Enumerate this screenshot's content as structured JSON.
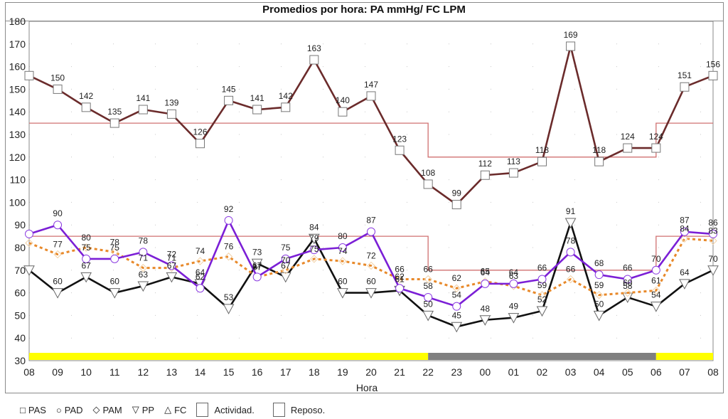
{
  "chart_data": {
    "type": "line",
    "title": "Promedios por hora: PA mmHg/ FC LPM",
    "xlabel": "Hora",
    "ylabel": "",
    "ylim": [
      30,
      180
    ],
    "yticks": [
      30,
      40,
      50,
      60,
      70,
      80,
      90,
      100,
      110,
      120,
      130,
      140,
      150,
      160,
      170,
      180
    ],
    "grid": "dotted",
    "categories": [
      "08",
      "09",
      "10",
      "11",
      "12",
      "13",
      "14",
      "15",
      "16",
      "17",
      "18",
      "19",
      "20",
      "21",
      "22",
      "23",
      "00",
      "01",
      "02",
      "03",
      "04",
      "05",
      "06",
      "07",
      "08"
    ],
    "series": [
      {
        "name": "PAS",
        "color": "#6b2b2b",
        "marker": "square",
        "values": [
          156,
          150,
          142,
          135,
          141,
          139,
          126,
          145,
          141,
          142,
          163,
          140,
          147,
          123,
          108,
          99,
          112,
          113,
          118,
          169,
          118,
          124,
          124,
          151,
          156
        ]
      },
      {
        "name": "PAD",
        "color": "#7b1fd6",
        "marker": "circle",
        "values": [
          86,
          90,
          75,
          75,
          78,
          72,
          62,
          92,
          67,
          75,
          79,
          80,
          87,
          62,
          58,
          54,
          64,
          64,
          66,
          78,
          68,
          66,
          70,
          87,
          86
        ]
      },
      {
        "name": "PAM",
        "color": "#e8892a",
        "marker": "diamond",
        "dashed": true,
        "values": [
          82,
          77,
          80,
          78,
          71,
          71,
          74,
          76,
          67,
          70,
          75,
          74,
          72,
          66,
          66,
          62,
          65,
          63,
          59,
          66,
          59,
          60,
          61,
          84,
          83
        ]
      },
      {
        "name": "PP",
        "color": "#111111",
        "marker": "triangle-down",
        "values": [
          70,
          60,
          67,
          60,
          63,
          67,
          64,
          53,
          73,
          67,
          84,
          60,
          60,
          61,
          50,
          45,
          48,
          49,
          52,
          91,
          50,
          58,
          54,
          64,
          70
        ]
      }
    ],
    "thresholds": {
      "color": "#d07070",
      "systolic": [
        {
          "from": "08",
          "to": "22",
          "value": 135
        },
        {
          "from": "22",
          "to": "06",
          "value": 120
        },
        {
          "from": "06",
          "to": "08",
          "value": 135
        }
      ],
      "diastolic": [
        {
          "from": "08",
          "to": "22",
          "value": 85
        },
        {
          "from": "22",
          "to": "06",
          "value": 70
        },
        {
          "from": "06",
          "to": "08",
          "value": 85
        }
      ]
    },
    "period_bar": [
      {
        "from": "08",
        "to": "22",
        "state": "Actividad.",
        "color": "#ffff00"
      },
      {
        "from": "22",
        "to": "06",
        "state": "Reposo.",
        "color": "#808080"
      },
      {
        "from": "06",
        "to": "08",
        "state": "Actividad.",
        "color": "#ffff00"
      }
    ],
    "legend": {
      "position": "bottom-left",
      "entries": [
        {
          "symbol": "□",
          "label": "PAS"
        },
        {
          "symbol": "○",
          "label": "PAD"
        },
        {
          "symbol": "◇",
          "label": "PAM"
        },
        {
          "symbol": "▽",
          "label": "PP"
        },
        {
          "symbol": "△",
          "label": "FC"
        },
        {
          "symbol": "box",
          "label": "Actividad."
        },
        {
          "symbol": "box",
          "label": "Reposo."
        }
      ]
    }
  }
}
